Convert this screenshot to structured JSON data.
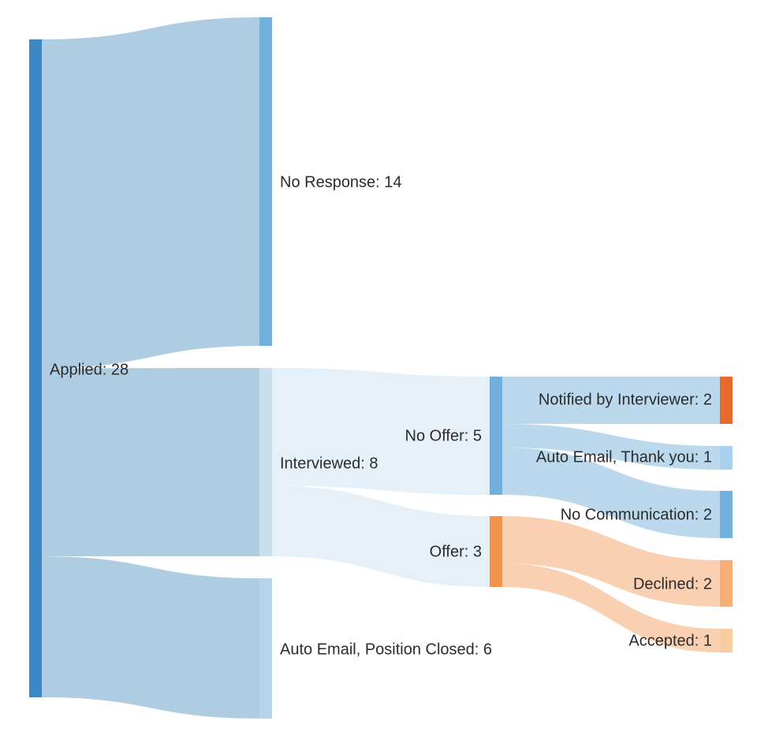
{
  "chart_data": {
    "type": "sankey",
    "nodes": [
      {
        "id": "applied",
        "label": "Applied: 28",
        "value": 28,
        "color": "#3d88c0"
      },
      {
        "id": "no_response",
        "label": "No Response: 14",
        "value": 14,
        "color": "#6fb0dc"
      },
      {
        "id": "interviewed",
        "label": "Interviewed: 8",
        "value": 8,
        "color": "#c9dfee"
      },
      {
        "id": "auto_closed",
        "label": "Auto Email, Position Closed: 6",
        "value": 6,
        "color": "#b6d4ea"
      },
      {
        "id": "no_offer",
        "label": "No Offer: 5",
        "value": 5,
        "color": "#6fb0dc"
      },
      {
        "id": "offer",
        "label": "Offer: 3",
        "value": 3,
        "color": "#f4914a"
      },
      {
        "id": "notified",
        "label": "Notified by Interviewer: 2",
        "value": 2,
        "color": "#e8692a"
      },
      {
        "id": "thank_you",
        "label": "Auto Email, Thank you: 1",
        "value": 1,
        "color": "#a9d0ee"
      },
      {
        "id": "no_comm",
        "label": "No Communication: 2",
        "value": 2,
        "color": "#6fb0dc"
      },
      {
        "id": "declined",
        "label": "Declined: 2",
        "value": 2,
        "color": "#f7ad74"
      },
      {
        "id": "accepted",
        "label": "Accepted: 1",
        "value": 1,
        "color": "#f9cc9f"
      }
    ],
    "links": [
      {
        "source": "applied",
        "target": "no_response",
        "value": 14,
        "color": "#aecde3"
      },
      {
        "source": "applied",
        "target": "interviewed",
        "value": 8,
        "color": "#aecde3"
      },
      {
        "source": "applied",
        "target": "auto_closed",
        "value": 6,
        "color": "#aecde3"
      },
      {
        "source": "interviewed",
        "target": "no_offer",
        "value": 5,
        "color": "#e6f0f8"
      },
      {
        "source": "interviewed",
        "target": "offer",
        "value": 3,
        "color": "#e6f0f8"
      },
      {
        "source": "no_offer",
        "target": "notified",
        "value": 2,
        "color": "#bcd8ec"
      },
      {
        "source": "no_offer",
        "target": "thank_you",
        "value": 1,
        "color": "#bcd8ec"
      },
      {
        "source": "no_offer",
        "target": "no_comm",
        "value": 2,
        "color": "#bcd8ec"
      },
      {
        "source": "offer",
        "target": "declined",
        "value": 2,
        "color": "#f9d1b2"
      },
      {
        "source": "offer",
        "target": "accepted",
        "value": 1,
        "color": "#f9d1b2"
      }
    ]
  }
}
